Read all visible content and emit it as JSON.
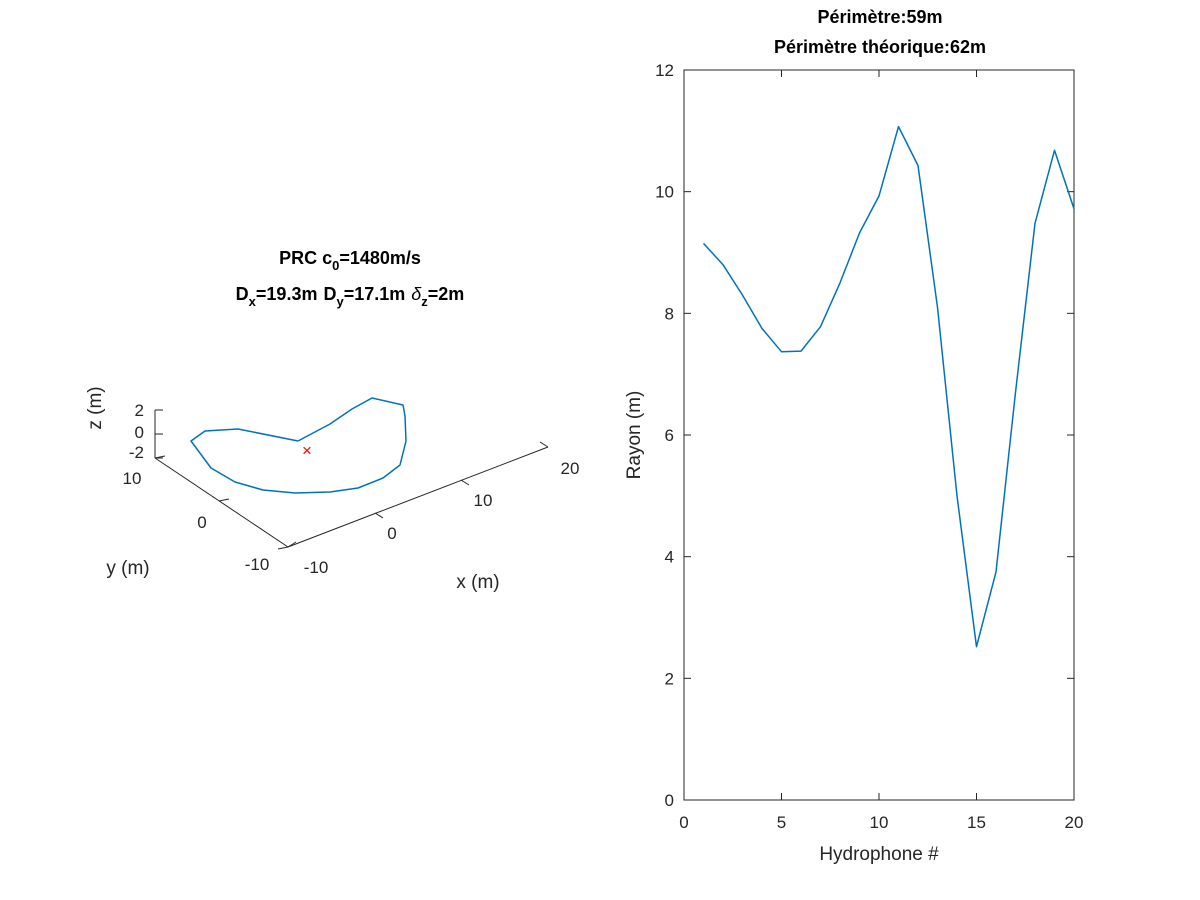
{
  "chart_data": [
    {
      "type": "line",
      "subtype": "3d",
      "title_line1": {
        "prefix": "PRC c",
        "sub": "0",
        "suffix": "=1480m/s"
      },
      "title_line2": {
        "dx_label": "D",
        "dx_sub": "x",
        "dx_value": "=19.3m",
        "dy_label": "D",
        "dy_sub": "y",
        "dy_value": "=17.1m",
        "dz_label": "δ",
        "dz_sub": "z",
        "dz_value": "=2m"
      },
      "xlabel": "x (m)",
      "ylabel": "y (m)",
      "zlabel": "z (m)",
      "x_ticks": [
        "-10",
        "0",
        "10",
        "20"
      ],
      "y_ticks": [
        "-10",
        "0",
        "10"
      ],
      "z_ticks": [
        "2",
        "0",
        "-2"
      ],
      "series_color": "#0072BD",
      "marker": {
        "symbol": "×",
        "color": "#FF0000"
      }
    },
    {
      "type": "line",
      "title_line1": "Périmètre:59m",
      "title_line2": "Périmètre théorique:62m",
      "xlabel": "Hydrophone #",
      "ylabel": "Rayon (m)",
      "xlim": [
        0,
        20
      ],
      "ylim": [
        0,
        12
      ],
      "x_ticks": [
        0,
        5,
        10,
        15,
        20
      ],
      "y_ticks": [
        0,
        2,
        4,
        6,
        8,
        10,
        12
      ],
      "x": [
        1,
        2,
        3,
        4,
        5,
        6,
        7,
        8,
        9,
        10,
        11,
        12,
        13,
        14,
        15,
        16,
        17,
        18,
        19,
        20
      ],
      "values": [
        9.15,
        8.8,
        8.3,
        7.75,
        7.37,
        7.38,
        7.78,
        8.5,
        9.32,
        9.93,
        11.07,
        10.43,
        8.1,
        5.0,
        2.52,
        3.75,
        6.7,
        9.48,
        10.68,
        9.72
      ],
      "series_color": "#0072BD"
    }
  ]
}
